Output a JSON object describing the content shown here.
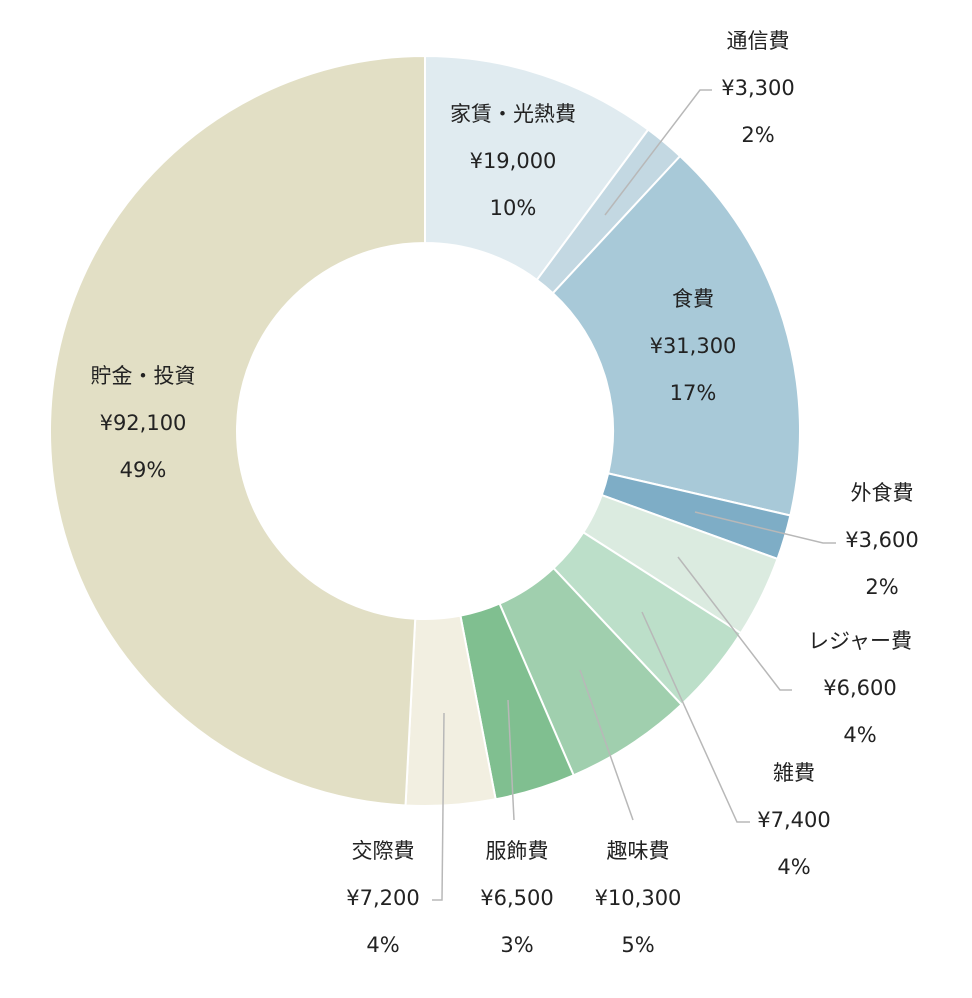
{
  "chart_data": {
    "type": "pie",
    "variant": "donut",
    "currency_symbol": "¥",
    "slices": [
      {
        "name": "家賃・光熱費",
        "value": 19000,
        "value_label": "¥19,000",
        "percent_label": "10%",
        "color": "#e0ebf0"
      },
      {
        "name": "通信費",
        "value": 3300,
        "value_label": "¥3,300",
        "percent_label": "2%",
        "color": "#c3d8e2"
      },
      {
        "name": "食費",
        "value": 31300,
        "value_label": "¥31,300",
        "percent_label": "17%",
        "color": "#a8c9d8"
      },
      {
        "name": "外食費",
        "value": 3600,
        "value_label": "¥3,600",
        "percent_label": "2%",
        "color": "#7eadc6"
      },
      {
        "name": "レジャー費",
        "value": 6600,
        "value_label": "¥6,600",
        "percent_label": "4%",
        "color": "#dbebe0"
      },
      {
        "name": "雑費",
        "value": 7400,
        "value_label": "¥7,400",
        "percent_label": "4%",
        "color": "#bcdfc9"
      },
      {
        "name": "趣味費",
        "value": 10300,
        "value_label": "¥10,300",
        "percent_label": "5%",
        "color": "#a0cfae"
      },
      {
        "name": "服飾費",
        "value": 6500,
        "value_label": "¥6,500",
        "percent_label": "3%",
        "color": "#80bf90"
      },
      {
        "name": "交際費",
        "value": 7200,
        "value_label": "¥7,200",
        "percent_label": "4%",
        "color": "#f2efe1"
      },
      {
        "name": "貯金・投資",
        "value": 92100,
        "value_label": "¥92,100",
        "percent_label": "49%",
        "color": "#e2dfc5"
      }
    ]
  }
}
